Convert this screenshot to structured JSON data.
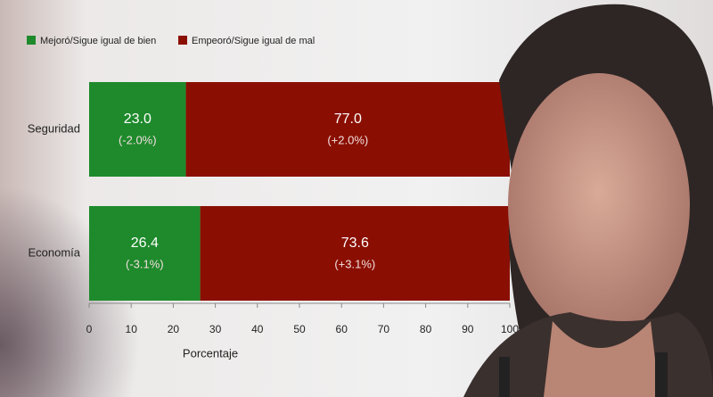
{
  "chart_data": {
    "type": "stacked-barh",
    "categories": [
      "Seguridad",
      "Economía"
    ],
    "series": [
      {
        "name": "Mejoró/Sigue igual de bien",
        "color": "#1e8a2c",
        "values": [
          23.0,
          26.4
        ],
        "value_labels": [
          "23.0",
          "26.4"
        ],
        "sub_labels": [
          "(-2.0%)",
          "(-3.1%)"
        ]
      },
      {
        "name": "Empeoró/Sigue igual de mal",
        "color": "#8a0f02",
        "values": [
          77.0,
          73.6
        ],
        "value_labels": [
          "77.0",
          "73.6"
        ],
        "sub_labels": [
          "(+2.0%)",
          "(+3.1%)"
        ]
      }
    ],
    "x_label": "Porcentaje",
    "xlim": [
      0,
      100
    ],
    "xticks": [
      0,
      10,
      20,
      30,
      40,
      50,
      60,
      70,
      80,
      90,
      100
    ]
  }
}
